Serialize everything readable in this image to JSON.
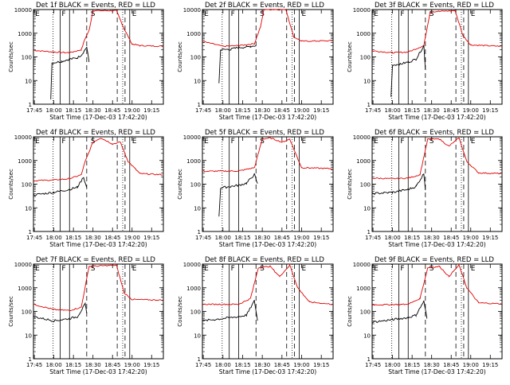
{
  "chart_data": {
    "type": "line",
    "xlabel": "Start Time (17-Dec-03 17:42:20)",
    "ylabel": "Counts/sec",
    "ylim": [
      1,
      10000
    ],
    "yscale": "log",
    "xlim": [
      17.7389,
      19.4
    ],
    "x_ticks": [
      17.75,
      18.0,
      18.25,
      18.5,
      18.75,
      19.0,
      19.25
    ],
    "x_tick_labels": [
      "17:45",
      "18:00",
      "18:15",
      "18:30",
      "18:45",
      "19:00",
      "19:15"
    ],
    "y_ticks": [
      1,
      10,
      100,
      1000,
      10000
    ],
    "y_tick_labels": [
      "1",
      "10",
      "100",
      "1000",
      "10000"
    ],
    "region_labels": [
      "E",
      "F",
      "S",
      "E"
    ],
    "series_colors": {
      "events": "#000000",
      "lld": "#e00000"
    },
    "panels": [
      {
        "title": "Det 1f BLACK = Events, RED = LLD",
        "lld_base": 180,
        "ev_base": 55,
        "lld_end": 280,
        "events": [
          [
            17.96,
            1.6
          ],
          [
            17.975,
            55
          ],
          [
            18.1,
            65
          ],
          [
            18.2,
            80
          ],
          [
            18.3,
            90
          ],
          [
            18.36,
            130
          ],
          [
            18.42,
            260
          ],
          [
            18.45,
            60
          ]
        ],
        "lld": [
          [
            17.74,
            190
          ],
          [
            18.0,
            160
          ],
          [
            18.2,
            150
          ],
          [
            18.35,
            200
          ],
          [
            18.4,
            600
          ],
          [
            18.45,
            1300
          ],
          [
            18.5,
            9000
          ],
          [
            18.8,
            9000
          ],
          [
            18.9,
            1500
          ],
          [
            19.0,
            350
          ],
          [
            19.1,
            300
          ],
          [
            19.39,
            280
          ]
        ]
      },
      {
        "title": "Det 2f BLACK = Events, RED = LLD",
        "lld_base": 500,
        "ev_base": 200,
        "lld_end": 460,
        "events": [
          [
            17.95,
            8
          ],
          [
            17.97,
            200
          ],
          [
            18.1,
            210
          ],
          [
            18.2,
            250
          ],
          [
            18.3,
            260
          ],
          [
            18.35,
            280
          ],
          [
            18.42,
            300
          ]
        ],
        "lld": [
          [
            17.74,
            450
          ],
          [
            18.0,
            280
          ],
          [
            18.2,
            300
          ],
          [
            18.4,
            360
          ],
          [
            18.48,
            2000
          ],
          [
            18.52,
            10000
          ],
          [
            18.8,
            10000
          ],
          [
            18.9,
            700
          ],
          [
            19.0,
            460
          ],
          [
            19.39,
            480
          ]
        ]
      },
      {
        "title": "Det 3f BLACK = Events, RED = LLD",
        "lld_base": 180,
        "ev_base": 45,
        "lld_end": 300,
        "events": [
          [
            17.98,
            2
          ],
          [
            18.0,
            45
          ],
          [
            18.1,
            50
          ],
          [
            18.2,
            60
          ],
          [
            18.3,
            80
          ],
          [
            18.4,
            300
          ],
          [
            18.42,
            30
          ]
        ],
        "lld": [
          [
            17.74,
            180
          ],
          [
            18.0,
            150
          ],
          [
            18.2,
            160
          ],
          [
            18.4,
            300
          ],
          [
            18.48,
            8000
          ],
          [
            18.8,
            9000
          ],
          [
            18.9,
            800
          ],
          [
            19.0,
            320
          ],
          [
            19.39,
            280
          ]
        ]
      },
      {
        "title": "Det 4f BLACK = Events, RED = LLD",
        "lld_base": 140,
        "ev_base": 35,
        "lld_end": 250,
        "events": [
          [
            17.74,
            35
          ],
          [
            18.0,
            45
          ],
          [
            18.2,
            60
          ],
          [
            18.3,
            75
          ],
          [
            18.38,
            200
          ],
          [
            18.42,
            70
          ]
        ],
        "lld": [
          [
            17.74,
            140
          ],
          [
            18.0,
            150
          ],
          [
            18.2,
            170
          ],
          [
            18.35,
            250
          ],
          [
            18.4,
            900
          ],
          [
            18.5,
            6000
          ],
          [
            18.6,
            9000
          ],
          [
            18.75,
            5000
          ],
          [
            18.85,
            6000
          ],
          [
            18.95,
            900
          ],
          [
            19.1,
            280
          ],
          [
            19.39,
            250
          ]
        ]
      },
      {
        "title": "Det 5f BLACK = Events, RED = LLD",
        "lld_base": 350,
        "ev_base": 70,
        "lld_end": 450,
        "events": [
          [
            17.95,
            4
          ],
          [
            17.97,
            70
          ],
          [
            18.1,
            80
          ],
          [
            18.2,
            90
          ],
          [
            18.3,
            110
          ],
          [
            18.4,
            260
          ],
          [
            18.44,
            100
          ]
        ],
        "lld": [
          [
            17.74,
            350
          ],
          [
            18.2,
            360
          ],
          [
            18.4,
            500
          ],
          [
            18.5,
            8000
          ],
          [
            18.6,
            9000
          ],
          [
            18.75,
            6000
          ],
          [
            18.85,
            8000
          ],
          [
            18.95,
            1200
          ],
          [
            19.0,
            500
          ],
          [
            19.39,
            450
          ]
        ]
      },
      {
        "title": "Det 6f BLACK = Events, RED = LLD",
        "lld_base": 180,
        "ev_base": 40,
        "lld_end": 280,
        "events": [
          [
            17.74,
            40
          ],
          [
            18.0,
            45
          ],
          [
            18.2,
            60
          ],
          [
            18.3,
            80
          ],
          [
            18.4,
            280
          ],
          [
            18.42,
            60
          ]
        ],
        "lld": [
          [
            17.74,
            180
          ],
          [
            18.0,
            170
          ],
          [
            18.2,
            180
          ],
          [
            18.35,
            250
          ],
          [
            18.45,
            8000
          ],
          [
            18.6,
            8000
          ],
          [
            18.72,
            4000
          ],
          [
            18.85,
            9000
          ],
          [
            18.95,
            900
          ],
          [
            19.1,
            300
          ],
          [
            19.39,
            280
          ]
        ]
      },
      {
        "title": "Det 7f BLACK = Events, RED = LLD",
        "lld_base": 200,
        "ev_base": 50,
        "lld_end": 300,
        "events": [
          [
            17.74,
            60
          ],
          [
            18.0,
            40
          ],
          [
            18.2,
            50
          ],
          [
            18.3,
            60
          ],
          [
            18.4,
            200
          ],
          [
            18.42,
            80
          ]
        ],
        "lld": [
          [
            17.74,
            200
          ],
          [
            18.0,
            120
          ],
          [
            18.2,
            110
          ],
          [
            18.35,
            150
          ],
          [
            18.45,
            8000
          ],
          [
            18.8,
            9000
          ],
          [
            18.9,
            600
          ],
          [
            19.0,
            320
          ],
          [
            19.39,
            300
          ]
        ]
      },
      {
        "title": "Det 8f BLACK = Events, RED = LLD",
        "lld_base": 200,
        "ev_base": 45,
        "lld_end": 200,
        "events": [
          [
            17.74,
            40
          ],
          [
            18.0,
            50
          ],
          [
            18.2,
            60
          ],
          [
            18.3,
            70
          ],
          [
            18.4,
            280
          ],
          [
            18.44,
            40
          ]
        ],
        "lld": [
          [
            17.74,
            200
          ],
          [
            18.2,
            200
          ],
          [
            18.35,
            350
          ],
          [
            18.45,
            7000
          ],
          [
            18.6,
            8000
          ],
          [
            18.72,
            3000
          ],
          [
            18.85,
            9000
          ],
          [
            18.95,
            1000
          ],
          [
            19.1,
            250
          ],
          [
            19.39,
            200
          ]
        ]
      },
      {
        "title": "Det 9f BLACK = Events, RED = LLD",
        "lld_base": 190,
        "ev_base": 40,
        "lld_end": 210,
        "events": [
          [
            17.74,
            35
          ],
          [
            18.0,
            45
          ],
          [
            18.2,
            55
          ],
          [
            18.3,
            70
          ],
          [
            18.4,
            270
          ],
          [
            18.44,
            50
          ]
        ],
        "lld": [
          [
            17.74,
            190
          ],
          [
            18.2,
            200
          ],
          [
            18.35,
            350
          ],
          [
            18.45,
            7000
          ],
          [
            18.6,
            8000
          ],
          [
            18.72,
            3000
          ],
          [
            18.85,
            9000
          ],
          [
            18.95,
            1000
          ],
          [
            19.1,
            230
          ],
          [
            19.39,
            210
          ]
        ]
      }
    ],
    "markers": {
      "dotted": [
        17.99,
        18.88
      ],
      "solid": [
        18.08,
        18.2,
        18.97
      ],
      "dashed": [
        18.42,
        18.81,
        18.91
      ]
    }
  }
}
